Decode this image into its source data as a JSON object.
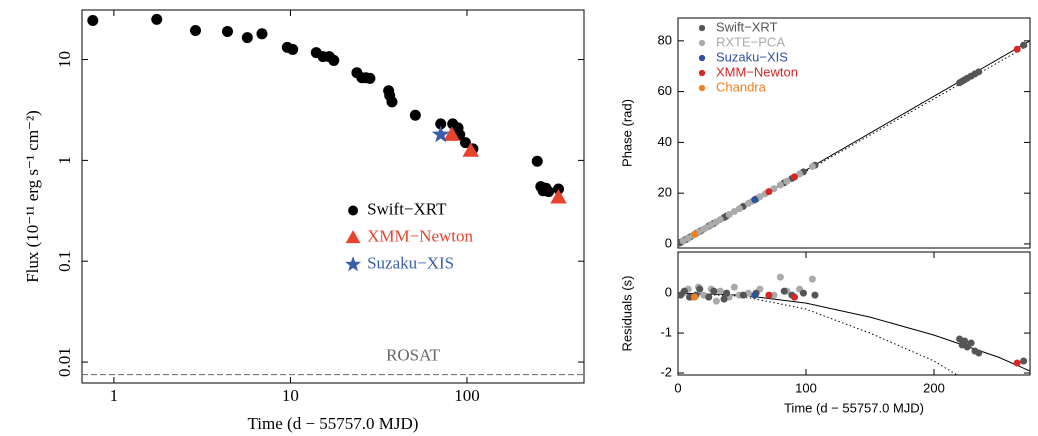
{
  "chart_data": [
    {
      "type": "scatter",
      "xlog": true,
      "ylog": true,
      "xlabel": "Time (d − 55757.0 MJD)",
      "ylabel": "Flux (10⁻¹¹ erg s⁻¹ cm⁻²)",
      "xlim": [
        0.66,
        460
      ],
      "ylim": [
        0.0062,
        31
      ],
      "xticks": [
        1,
        10,
        100
      ],
      "yticks": [
        0.01,
        0.1,
        1,
        10
      ],
      "legend": "center right",
      "hlines": [
        {
          "y": 0.0075,
          "label": "ROSAT",
          "color": "#666666",
          "style": "dashed"
        }
      ],
      "series": [
        {
          "name": "Swift−XRT",
          "color": "#000000",
          "marker": "circle",
          "x": [
            0.76,
            1.75,
            2.9,
            4.4,
            5.7,
            6.9,
            9.6,
            10.3,
            14,
            15.3,
            16.6,
            17.6,
            23.8,
            25.4,
            26.8,
            28.2,
            36,
            36.5,
            37.6,
            51,
            71,
            83,
            89,
            91,
            98,
            108,
            250,
            262,
            270,
            280,
            290,
            330
          ],
          "values": [
            24.4,
            25,
            19.4,
            19,
            16.5,
            18,
            13.2,
            12.6,
            11.7,
            10.7,
            10.7,
            9.8,
            7.4,
            6.6,
            6.6,
            6.5,
            4.9,
            4.4,
            3.8,
            2.8,
            2.3,
            2.3,
            2.1,
            1.8,
            1.5,
            1.3,
            0.98,
            0.55,
            0.5,
            0.53,
            0.49,
            0.52
          ]
        },
        {
          "name": "XMM−Newton",
          "color": "#e8432f",
          "marker": "triangle",
          "x": [
            82,
            105,
            330
          ],
          "values": [
            1.8,
            1.25,
            0.43
          ]
        },
        {
          "name": "Suzaku−XIS",
          "color": "#3a5fa8",
          "marker": "star",
          "x": [
            71
          ],
          "values": [
            1.8
          ]
        }
      ]
    },
    {
      "type": "scatter",
      "ylabel": "Phase (rad)",
      "xlim": [
        0,
        275
      ],
      "ylim": [
        -1.6,
        89
      ],
      "yticks": [
        0,
        20,
        40,
        60,
        80
      ],
      "legend": "upper left",
      "lines": [
        {
          "x": [
            0,
            275
          ],
          "values": [
            0,
            80
          ],
          "color": "#000000",
          "style": "solid"
        },
        {
          "x": [
            0,
            275
          ],
          "values": [
            0,
            78.6
          ],
          "color": "#000000",
          "style": "dotted"
        }
      ],
      "series": [
        {
          "name": "Swift−XRT",
          "color": "#555555",
          "x": [
            1,
            2,
            3,
            5,
            6,
            7,
            9,
            10,
            14,
            15,
            17,
            18,
            24,
            25,
            27,
            28,
            36,
            37,
            38,
            51,
            61,
            83,
            89,
            91,
            98,
            107,
            220,
            222,
            224,
            226,
            229,
            232,
            235,
            270
          ],
          "values": [
            0.3,
            0.6,
            0.9,
            1.5,
            1.7,
            2.0,
            2.6,
            2.9,
            4.1,
            4.4,
            4.9,
            5.2,
            7.0,
            7.3,
            7.8,
            8.1,
            10.4,
            10.7,
            11.0,
            14.8,
            17.7,
            24.1,
            25.8,
            26.4,
            28.4,
            31.0,
            63.5,
            64.1,
            64.7,
            65.3,
            66.1,
            67.0,
            67.8,
            78.3
          ]
        },
        {
          "name": "RXTE−PCA",
          "color": "#aaaaaa",
          "x": [
            4,
            8,
            12,
            16,
            20,
            22,
            26,
            30,
            33,
            40,
            44,
            48,
            55,
            58,
            64,
            68,
            75,
            80,
            85,
            95,
            105
          ],
          "values": [
            1.2,
            2.3,
            3.5,
            4.6,
            5.8,
            6.4,
            7.5,
            8.7,
            9.6,
            11.6,
            12.8,
            13.9,
            16.0,
            16.8,
            18.6,
            19.7,
            21.8,
            23.2,
            24.7,
            27.6,
            30.5
          ]
        },
        {
          "name": "Suzaku−XIS",
          "color": "#3050a0",
          "x": [
            60
          ],
          "values": [
            17.4
          ]
        },
        {
          "name": "XMM−Newton",
          "color": "#d62728",
          "x": [
            71,
            91,
            265
          ],
          "values": [
            20.6,
            26.4,
            76.7
          ]
        },
        {
          "name": "Chandra",
          "color": "#f08020",
          "x": [
            13
          ],
          "values": [
            3.8
          ]
        }
      ]
    },
    {
      "type": "scatter",
      "xlabel": "Time (d − 55757.0 MJD)",
      "ylabel": "Residuals (s)",
      "xlim": [
        0,
        275
      ],
      "ylim": [
        -2.05,
        1.03
      ],
      "xticks": [
        0,
        100,
        200
      ],
      "yticks": [
        -2,
        -1,
        0
      ],
      "lines": [
        {
          "x": [
            0,
            50,
            100,
            150,
            200,
            250,
            275
          ],
          "values": [
            0,
            -0.05,
            -0.25,
            -0.6,
            -1.05,
            -1.6,
            -1.95
          ],
          "color": "#000000",
          "style": "solid"
        },
        {
          "x": [
            0,
            50,
            100,
            150,
            200,
            218
          ],
          "values": [
            0,
            -0.08,
            -0.4,
            -1.0,
            -1.7,
            -2.05
          ],
          "color": "#000000",
          "style": "dotted"
        }
      ],
      "series": [
        {
          "color": "#aaaaaa",
          "x": [
            4,
            8,
            12,
            16,
            20,
            26,
            30,
            33,
            40,
            44,
            48,
            55,
            64,
            75,
            80,
            85,
            95,
            105
          ],
          "values": [
            0,
            0.1,
            -0.1,
            0.15,
            -0.05,
            0.1,
            -0.2,
            0.05,
            -0.1,
            0.15,
            -0.05,
            0,
            0.1,
            -0.05,
            0.4,
            0.05,
            0.1,
            0.35
          ]
        },
        {
          "color": "#555555",
          "x": [
            2,
            5,
            9,
            14,
            17,
            24,
            28,
            36,
            38,
            51,
            61,
            83,
            89,
            98,
            107,
            220,
            222,
            224,
            226,
            229,
            232,
            235,
            270
          ],
          "values": [
            -0.05,
            0.05,
            -0.1,
            -0.05,
            0.1,
            -0.1,
            0.05,
            -0.15,
            0,
            -0.05,
            0,
            0.05,
            -0.05,
            0,
            -0.05,
            -1.15,
            -1.3,
            -1.2,
            -1.35,
            -1.25,
            -1.45,
            -1.5,
            -1.7
          ]
        },
        {
          "color": "#3050a0",
          "x": [
            60
          ],
          "values": [
            -0.05
          ]
        },
        {
          "color": "#d62728",
          "x": [
            71,
            91,
            265
          ],
          "values": [
            -0.05,
            -0.1,
            -1.75
          ]
        },
        {
          "color": "#f08020",
          "x": [
            13
          ],
          "values": [
            -0.1
          ]
        }
      ]
    }
  ]
}
